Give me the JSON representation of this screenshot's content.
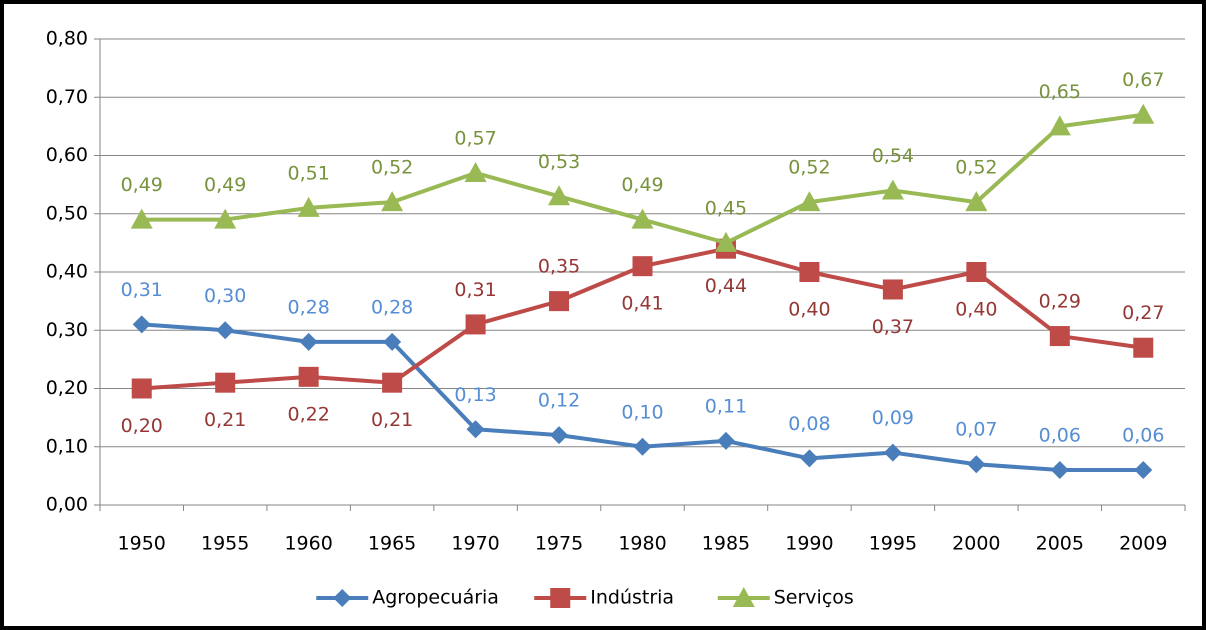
{
  "chart_data": {
    "type": "line",
    "categories": [
      "1950",
      "1955",
      "1960",
      "1965",
      "1970",
      "1975",
      "1980",
      "1985",
      "1990",
      "1995",
      "2000",
      "2005",
      "2009"
    ],
    "series": [
      {
        "name": "Agropecuária",
        "color": "#4a7ebb",
        "label_color": "#558ed5",
        "marker": "diamond",
        "values": [
          0.31,
          0.3,
          0.28,
          0.28,
          0.13,
          0.12,
          0.1,
          0.11,
          0.08,
          0.09,
          0.07,
          0.06,
          0.06
        ],
        "value_labels": [
          "0,31",
          "0,30",
          "0,28",
          "0,28",
          "0,13",
          "0,12",
          "0,10",
          "0,11",
          "0,08",
          "0,09",
          "0,07",
          "0,06",
          "0,06"
        ]
      },
      {
        "name": "Indústria",
        "color": "#be4b48",
        "label_color": "#953735",
        "marker": "square",
        "values": [
          0.2,
          0.21,
          0.22,
          0.21,
          0.31,
          0.35,
          0.41,
          0.44,
          0.4,
          0.37,
          0.4,
          0.29,
          0.27
        ],
        "value_labels": [
          "0,20",
          "0,21",
          "0,22",
          "0,21",
          "0,31",
          "0,35",
          "0,41",
          "0,44",
          "0,40",
          "0,37",
          "0,40",
          "0,29",
          "0,27"
        ]
      },
      {
        "name": "Serviços",
        "color": "#98b954",
        "label_color": "#77933c",
        "marker": "triangle",
        "values": [
          0.49,
          0.49,
          0.51,
          0.52,
          0.57,
          0.53,
          0.49,
          0.45,
          0.52,
          0.54,
          0.52,
          0.65,
          0.67
        ],
        "value_labels": [
          "0,49",
          "0,49",
          "0,51",
          "0,52",
          "0,57",
          "0,53",
          "0,49",
          "0,45",
          "0,52",
          "0,54",
          "0,52",
          "0,65",
          "0,67"
        ]
      }
    ],
    "ylim": [
      0,
      0.8
    ],
    "yticks": [
      {
        "value": 0,
        "label": "0,00"
      },
      {
        "value": 0.1,
        "label": "0,10"
      },
      {
        "value": 0.2,
        "label": "0,20"
      },
      {
        "value": 0.3,
        "label": "0,30"
      },
      {
        "value": 0.4,
        "label": "0,40"
      },
      {
        "value": 0.5,
        "label": "0,50"
      },
      {
        "value": 0.6,
        "label": "0,60"
      },
      {
        "value": 0.7,
        "label": "0,70"
      },
      {
        "value": 0.8,
        "label": "0,80"
      }
    ],
    "grid": true,
    "legend": "bottom"
  }
}
